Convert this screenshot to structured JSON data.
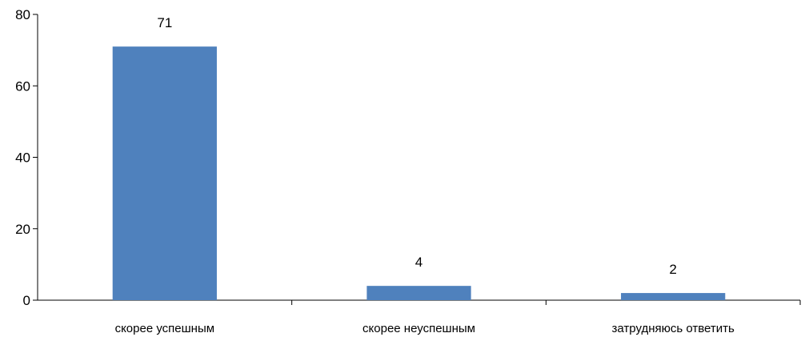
{
  "chart_data": {
    "type": "bar",
    "categories": [
      "скорее успешным",
      "скорее неуспешным",
      "затрудняюсь ответить"
    ],
    "values": [
      71,
      4,
      2
    ],
    "data_labels": [
      "71",
      "4",
      "2"
    ],
    "ylim": [
      0,
      80
    ],
    "yticks": [
      0,
      20,
      40,
      60,
      80
    ],
    "ytick_labels": [
      "0",
      "20",
      "40",
      "60",
      "80"
    ],
    "grid": false,
    "legend": "none",
    "colors": {
      "bar": "#4f81bd",
      "axis": "#000000"
    }
  }
}
